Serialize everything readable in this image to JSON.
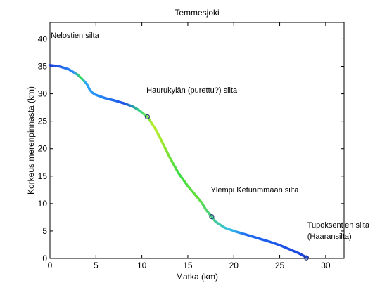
{
  "chart_data": {
    "type": "line",
    "title": "Temmesjoki",
    "xlabel": "Matka (km)",
    "ylabel": "Korkeus merenpinnasta (km)",
    "xlim": [
      0,
      32
    ],
    "ylim": [
      0,
      43
    ],
    "x_ticks": [
      0,
      5,
      10,
      15,
      20,
      25,
      30
    ],
    "y_ticks": [
      0,
      5,
      10,
      15,
      20,
      25,
      30,
      35,
      40
    ],
    "grid": false,
    "legend": "none",
    "series": [
      {
        "color_encoding": "gradient (blue = gentle slope, green/yellow = steep slope)",
        "x": [
          0,
          1,
          2,
          3,
          3.5,
          4,
          4.3,
          4.6,
          5,
          6,
          7,
          8,
          9,
          9.6,
          10,
          10.6,
          11,
          11.5,
          12,
          12.5,
          13,
          13.5,
          14,
          15,
          16,
          16.5,
          17,
          17.6,
          18,
          19,
          20,
          21,
          22,
          23,
          24,
          25,
          26,
          27,
          28
        ],
        "y": [
          35.2,
          35.0,
          34.5,
          33.5,
          32.7,
          31.8,
          30.8,
          30.2,
          29.8,
          29.2,
          28.8,
          28.3,
          27.7,
          27.1,
          26.6,
          25.8,
          24.8,
          23.5,
          21.9,
          20.2,
          18.5,
          17.0,
          15.5,
          13.2,
          11.2,
          10.2,
          8.8,
          7.6,
          6.7,
          5.6,
          5.0,
          4.5,
          4.0,
          3.5,
          3.0,
          2.4,
          1.7,
          1.0,
          0.1
        ]
      }
    ],
    "markers": [
      {
        "x": 10.6,
        "y": 25.8
      },
      {
        "x": 17.6,
        "y": 7.6
      },
      {
        "x": 27.9,
        "y": 0.1
      }
    ],
    "annotations": [
      {
        "text": "Nelostien silta",
        "x": 0.1,
        "y": 40.2
      },
      {
        "text": "Haurukylän (purettu?) silta",
        "x": 10.5,
        "y": 30.2
      },
      {
        "text": "Ylempi Ketunmmaan silta",
        "x": 17.5,
        "y": 12.0
      },
      {
        "text": "Tupoksentien silta",
        "x": 28.0,
        "y": 5.6
      },
      {
        "text": "(Haaransilta)",
        "x": 28.0,
        "y": 3.6
      }
    ]
  }
}
